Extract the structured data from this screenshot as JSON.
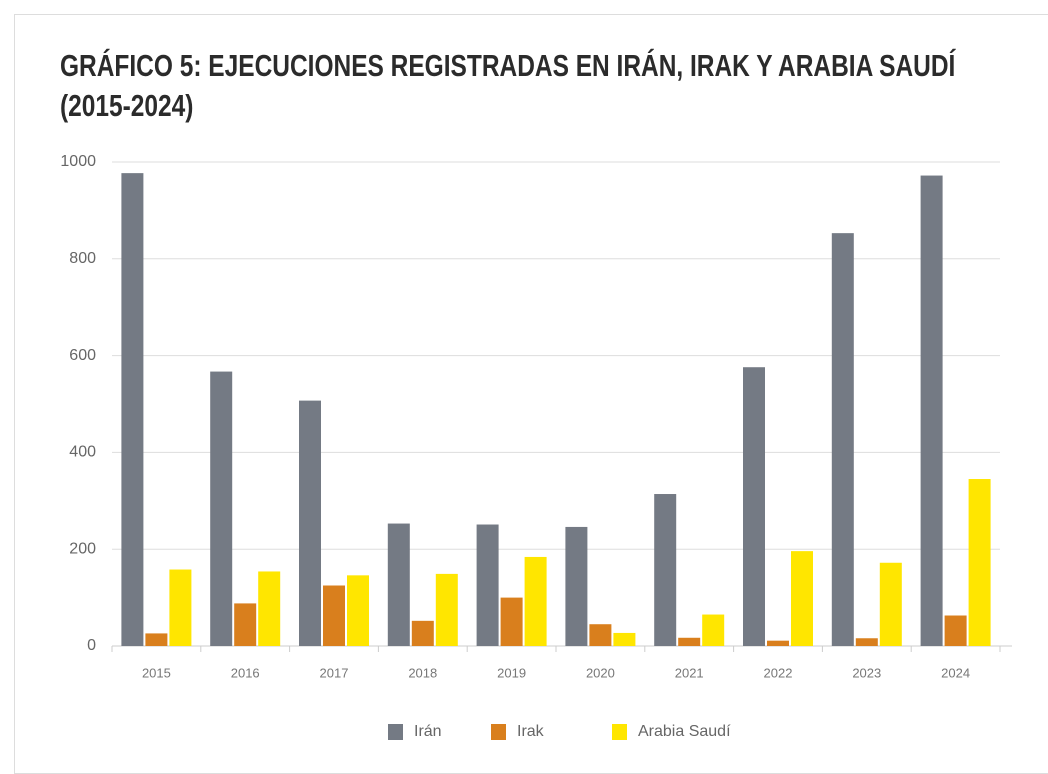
{
  "chart_data": {
    "type": "bar",
    "title": "GRÁFICO 5: EJECUCIONES REGISTRADAS EN IRÁN, IRAK Y ARABIA SAUDÍ (2015-2024)",
    "categories": [
      "2015",
      "2016",
      "2017",
      "2018",
      "2019",
      "2020",
      "2021",
      "2022",
      "2023",
      "2024"
    ],
    "series": [
      {
        "name": "Irán",
        "color": "#747a84",
        "values": [
          977,
          567,
          507,
          253,
          251,
          246,
          314,
          576,
          853,
          972
        ]
      },
      {
        "name": "Irak",
        "color": "#d97f1d",
        "values": [
          26,
          88,
          125,
          52,
          100,
          45,
          17,
          11,
          16,
          63
        ]
      },
      {
        "name": "Arabia Saudí",
        "color": "#ffe600",
        "values": [
          158,
          154,
          146,
          149,
          184,
          27,
          65,
          196,
          172,
          345
        ]
      }
    ],
    "ylim": [
      0,
      1000
    ],
    "yticks": [
      0,
      200,
      400,
      600,
      800,
      1000
    ],
    "grid": true,
    "legend": "bottom"
  }
}
